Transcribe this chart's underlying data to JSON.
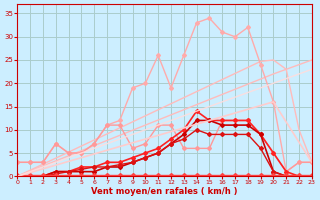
{
  "background_color": "#cceeff",
  "grid_color": "#aacccc",
  "xlabel": "Vent moyen/en rafales ( km/h )",
  "xlim": [
    0,
    23
  ],
  "ylim": [
    0,
    37
  ],
  "xticks": [
    0,
    1,
    2,
    3,
    4,
    5,
    6,
    7,
    8,
    9,
    10,
    11,
    12,
    13,
    14,
    15,
    16,
    17,
    18,
    19,
    20,
    21,
    22,
    23
  ],
  "yticks": [
    0,
    5,
    10,
    15,
    20,
    25,
    30,
    35
  ],
  "lines": [
    {
      "x": [
        0,
        1,
        2,
        3,
        4,
        5,
        6,
        7,
        8,
        9,
        10,
        11,
        12,
        13,
        14,
        15,
        16,
        17,
        18,
        19,
        20,
        21,
        22,
        23
      ],
      "y": [
        0,
        1.1,
        2.2,
        3.3,
        4.4,
        5.5,
        6.6,
        7.7,
        8.8,
        9.9,
        11,
        12.1,
        13.2,
        14.3,
        15.4,
        16.5,
        17.6,
        18.7,
        19.8,
        20.9,
        22,
        23,
        24,
        25
      ],
      "color": "#ffbbbb",
      "lw": 1.0,
      "marker": "none",
      "ms": 0,
      "alpha": 1.0
    },
    {
      "x": [
        0,
        1,
        2,
        3,
        4,
        5,
        6,
        7,
        8,
        9,
        10,
        11,
        12,
        13,
        14,
        15,
        16,
        17,
        18,
        19,
        20,
        21,
        22,
        23
      ],
      "y": [
        0,
        1.3,
        2.6,
        3.9,
        5.2,
        6.5,
        7.8,
        9.1,
        10.4,
        11.7,
        13,
        14.3,
        15.6,
        16.9,
        18.2,
        19.5,
        20.8,
        22.1,
        23.4,
        24.7,
        25,
        23,
        10,
        3
      ],
      "color": "#ffbbbb",
      "lw": 1.0,
      "marker": "none",
      "ms": 0,
      "alpha": 1.0
    },
    {
      "x": [
        0,
        1,
        2,
        3,
        4,
        5,
        6,
        7,
        8,
        9,
        10,
        11,
        12,
        13,
        14,
        15,
        16,
        17,
        18,
        19,
        20,
        21,
        22,
        23
      ],
      "y": [
        3,
        3,
        3,
        7,
        5,
        5,
        7,
        11,
        12,
        19,
        20,
        26,
        19,
        26,
        33,
        34,
        31,
        30,
        32,
        24,
        16,
        1,
        3,
        3
      ],
      "color": "#ffaaaa",
      "lw": 1.0,
      "marker": "D",
      "ms": 2.0,
      "alpha": 1.0
    },
    {
      "x": [
        0,
        1,
        2,
        3,
        4,
        5,
        6,
        7,
        8,
        9,
        10,
        11,
        12,
        13,
        14,
        15,
        16,
        17,
        18,
        19,
        20,
        21,
        22,
        23
      ],
      "y": [
        3,
        3,
        3,
        7,
        5,
        5,
        7,
        11,
        11,
        6,
        7,
        11,
        11,
        6,
        6,
        6,
        12,
        12,
        12,
        9,
        5,
        1,
        3,
        3
      ],
      "color": "#ff9999",
      "lw": 1.0,
      "marker": "D",
      "ms": 2.0,
      "alpha": 1.0
    },
    {
      "x": [
        0,
        1,
        2,
        3,
        4,
        5,
        6,
        7,
        8,
        9,
        10,
        11,
        12,
        13,
        14,
        15,
        16,
        17,
        18,
        19,
        20,
        21,
        22,
        23
      ],
      "y": [
        0,
        0,
        0,
        0,
        0,
        0,
        0,
        0,
        0,
        0,
        0,
        0,
        0,
        0,
        0,
        0,
        0,
        0,
        0,
        0,
        0,
        0,
        0,
        0
      ],
      "color": "#cc0000",
      "lw": 1.0,
      "marker": "+",
      "ms": 3.5,
      "alpha": 1.0
    },
    {
      "x": [
        0,
        1,
        2,
        3,
        4,
        5,
        6,
        7,
        8,
        9,
        10,
        11,
        12,
        13,
        14,
        15,
        16,
        17,
        18,
        19,
        20,
        21,
        22,
        23
      ],
      "y": [
        0,
        0,
        0,
        1,
        1,
        2,
        2,
        3,
        3,
        4,
        5,
        6,
        8,
        10,
        14,
        12,
        12,
        12,
        12,
        9,
        5,
        1,
        0,
        0
      ],
      "color": "#ff2222",
      "lw": 1.2,
      "marker": "D",
      "ms": 2.0,
      "alpha": 1.0
    },
    {
      "x": [
        0,
        1,
        2,
        3,
        4,
        5,
        6,
        7,
        8,
        9,
        10,
        11,
        12,
        13,
        14,
        15,
        16,
        17,
        18,
        19,
        20,
        21,
        22,
        23
      ],
      "y": [
        0,
        0,
        0,
        1,
        1,
        1,
        1,
        2,
        2,
        3,
        4,
        5,
        7,
        9,
        12,
        12,
        11,
        11,
        11,
        9,
        1,
        0,
        0,
        0
      ],
      "color": "#cc0000",
      "lw": 1.2,
      "marker": "D",
      "ms": 2.0,
      "alpha": 1.0
    },
    {
      "x": [
        0,
        1,
        2,
        3,
        4,
        5,
        6,
        7,
        8,
        9,
        10,
        11,
        12,
        13,
        14,
        15,
        16,
        17,
        18,
        19,
        20,
        21,
        22,
        23
      ],
      "y": [
        0,
        0,
        0,
        0.5,
        1,
        1.5,
        2,
        2,
        2.5,
        3,
        4,
        5,
        7,
        8,
        10,
        9,
        9,
        9,
        9,
        6,
        1,
        0,
        0,
        0
      ],
      "color": "#dd1111",
      "lw": 1.0,
      "marker": "D",
      "ms": 2.0,
      "alpha": 1.0
    },
    {
      "x": [
        0,
        1,
        2,
        3,
        4,
        5,
        6,
        7,
        8,
        9,
        10,
        11,
        12,
        13,
        14,
        15,
        16,
        17,
        18,
        19,
        20,
        21,
        22,
        23
      ],
      "y": [
        0.3,
        0.3,
        0.3,
        0.3,
        0.3,
        0.3,
        0.3,
        0.3,
        0.3,
        0.3,
        0.3,
        0.3,
        0.3,
        0.3,
        0.3,
        0.3,
        0.3,
        0.3,
        0.3,
        0.3,
        0.3,
        0.3,
        0.3,
        0.3
      ],
      "color": "#ff4444",
      "lw": 1.0,
      "marker": "D",
      "ms": 2.0,
      "alpha": 1.0
    },
    {
      "x": [
        0,
        20,
        23
      ],
      "y": [
        0,
        16,
        3
      ],
      "color": "#ffcccc",
      "lw": 1.2,
      "marker": "none",
      "ms": 0,
      "alpha": 1.0
    },
    {
      "x": [
        0,
        23
      ],
      "y": [
        0,
        23
      ],
      "color": "#ffdddd",
      "lw": 1.0,
      "marker": "none",
      "ms": 0,
      "alpha": 0.9
    }
  ]
}
